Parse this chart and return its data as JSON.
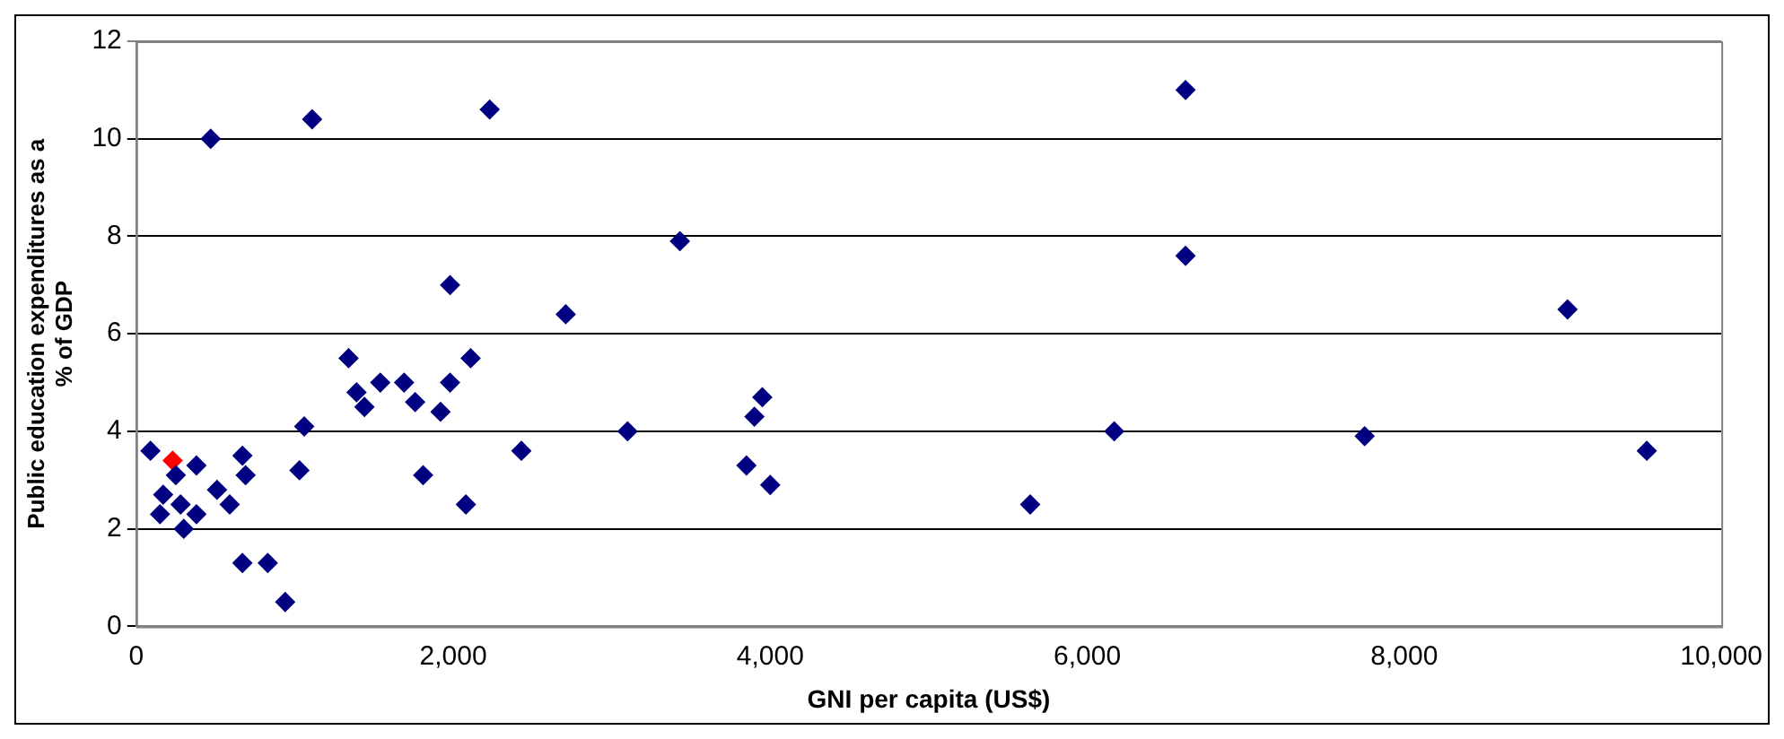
{
  "chart_data": {
    "type": "scatter",
    "xlabel": "GNI per capita (US$)",
    "ylabel": "Public education expenditures as a\n% of GDP",
    "xlim": [
      0,
      10000
    ],
    "xticks": [
      0,
      {
        "value": 2000,
        "label": "2,000"
      },
      {
        "value": 4000,
        "label": "4,000"
      },
      {
        "value": 6000,
        "label": "6,000"
      },
      {
        "value": 8000,
        "label": "8,000"
      },
      {
        "value": 10000,
        "label": "10,000"
      }
    ],
    "ylim": [
      0,
      12
    ],
    "yticks": [
      0,
      2,
      4,
      6,
      8,
      10,
      12
    ],
    "grid": "y",
    "legend": false,
    "marker": "diamond",
    "series": [
      {
        "color": "#000080",
        "x": [
          90,
          170,
          150,
          250,
          380,
          280,
          380,
          300,
          510,
          590,
          670,
          690,
          670,
          830,
          940,
          470,
          1110,
          1060,
          1030,
          1340,
          1390,
          1440,
          1540,
          1690,
          1760,
          1810,
          1920,
          1980,
          1980,
          2110,
          2080,
          2230,
          2430,
          2710,
          3100,
          3430,
          6620,
          6620,
          9030,
          3950,
          3900,
          3850,
          4000,
          5640,
          6170,
          7750,
          9530
        ],
        "values": [
          3.6,
          2.7,
          2.3,
          3.1,
          3.3,
          2.5,
          2.3,
          2.0,
          2.8,
          2.5,
          3.5,
          3.1,
          1.3,
          1.3,
          0.5,
          10.0,
          10.4,
          4.1,
          3.2,
          5.5,
          4.8,
          4.5,
          5.0,
          5.0,
          4.6,
          3.1,
          4.4,
          7.0,
          5.0,
          5.5,
          2.5,
          10.6,
          3.6,
          6.4,
          4.0,
          7.9,
          11.0,
          7.6,
          6.5,
          4.7,
          4.3,
          3.3,
          2.9,
          2.5,
          4.0,
          3.9,
          3.6
        ]
      },
      {
        "color": "#ff0000",
        "x": [
          230
        ],
        "values": [
          3.4
        ]
      }
    ]
  }
}
